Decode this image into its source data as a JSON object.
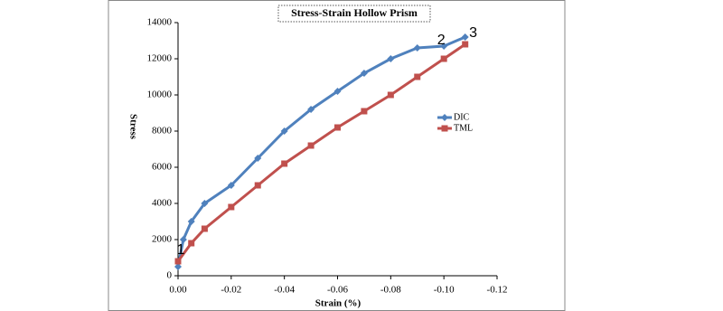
{
  "chart_data": {
    "type": "line",
    "title": "Stress-Strain Hollow Prism",
    "x_label": "Strain (%)",
    "y_label": "Stress",
    "xlim": [
      0,
      -0.12
    ],
    "ylim": [
      0,
      14000
    ],
    "xticks": [
      {
        "value": 0,
        "label": "0.00"
      },
      -0.02,
      -0.04,
      -0.06,
      -0.08,
      {
        "value": -0.1,
        "label": "-0.10"
      },
      -0.12
    ],
    "yticks": [
      0,
      2000,
      4000,
      6000,
      8000,
      10000,
      12000,
      14000
    ],
    "legend": "right",
    "series": [
      {
        "name": "DIC",
        "color": "#4f81bd",
        "marker": "diamond",
        "x": [
          0,
          -0.002,
          -0.005,
          -0.01,
          -0.02,
          -0.03,
          -0.04,
          -0.05,
          -0.06,
          -0.07,
          -0.08,
          -0.09,
          -0.1,
          -0.108
        ],
        "values": [
          500,
          2000,
          3000,
          4000,
          5000,
          6500,
          8000,
          9200,
          10200,
          11200,
          12000,
          12600,
          12700,
          13200
        ]
      },
      {
        "name": "TML",
        "color": "#c0504d",
        "marker": "square",
        "x": [
          0,
          -0.005,
          -0.01,
          -0.02,
          -0.03,
          -0.04,
          -0.05,
          -0.06,
          -0.07,
          -0.08,
          -0.09,
          -0.1,
          -0.108
        ],
        "values": [
          800,
          1800,
          2600,
          3800,
          5000,
          6200,
          7200,
          8200,
          9100,
          10000,
          11000,
          12000,
          12800
        ]
      }
    ],
    "annotations": [
      {
        "text": "1",
        "x": -0.001,
        "y": 1400
      },
      {
        "text": "2",
        "x": -0.099,
        "y": 13000
      },
      {
        "text": "3",
        "x": -0.111,
        "y": 13400
      }
    ]
  }
}
